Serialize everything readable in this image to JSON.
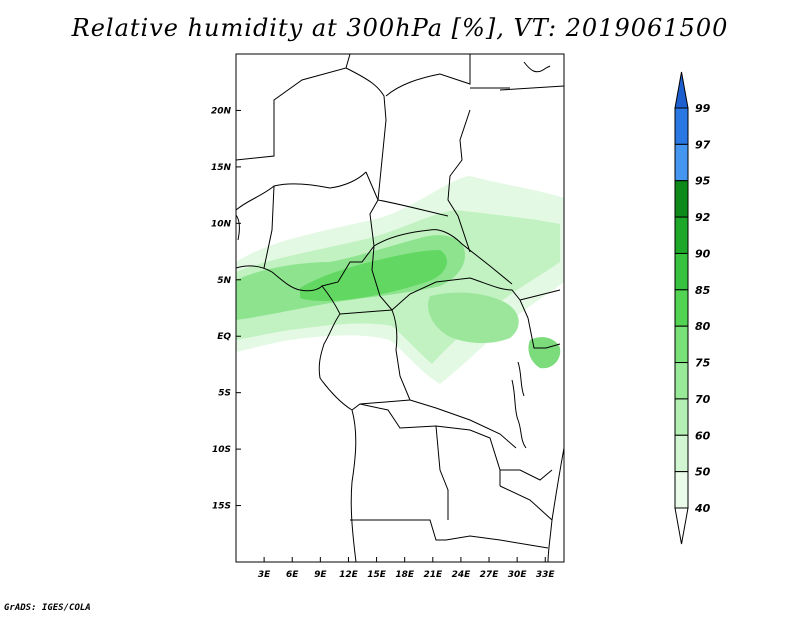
{
  "title": "Relative humidity at 300hPa [%], VT: 2019061500",
  "footer": "GrADS: IGES/COLA",
  "map": {
    "lon_labels": [
      "3E",
      "6E",
      "9E",
      "12E",
      "15E",
      "18E",
      "21E",
      "24E",
      "27E",
      "30E",
      "33E"
    ],
    "lat_labels": [
      "20N",
      "15N",
      "10N",
      "5N",
      "EQ",
      "5S",
      "10S",
      "15S"
    ],
    "lon_range": [
      0,
      35
    ],
    "lat_range": [
      -20,
      25
    ]
  },
  "colorbar": {
    "labels": [
      "99",
      "97",
      "95",
      "92",
      "90",
      "85",
      "80",
      "75",
      "70",
      "60",
      "50",
      "40"
    ],
    "colors": [
      "#1e5fd0",
      "#2a78e4",
      "#4496f0",
      "#0e8a1a",
      "#1ea82a",
      "#36c23e",
      "#52d452",
      "#78e278",
      "#98ea98",
      "#b4f0b4",
      "#d2f6d2",
      "#eafbea"
    ]
  }
}
